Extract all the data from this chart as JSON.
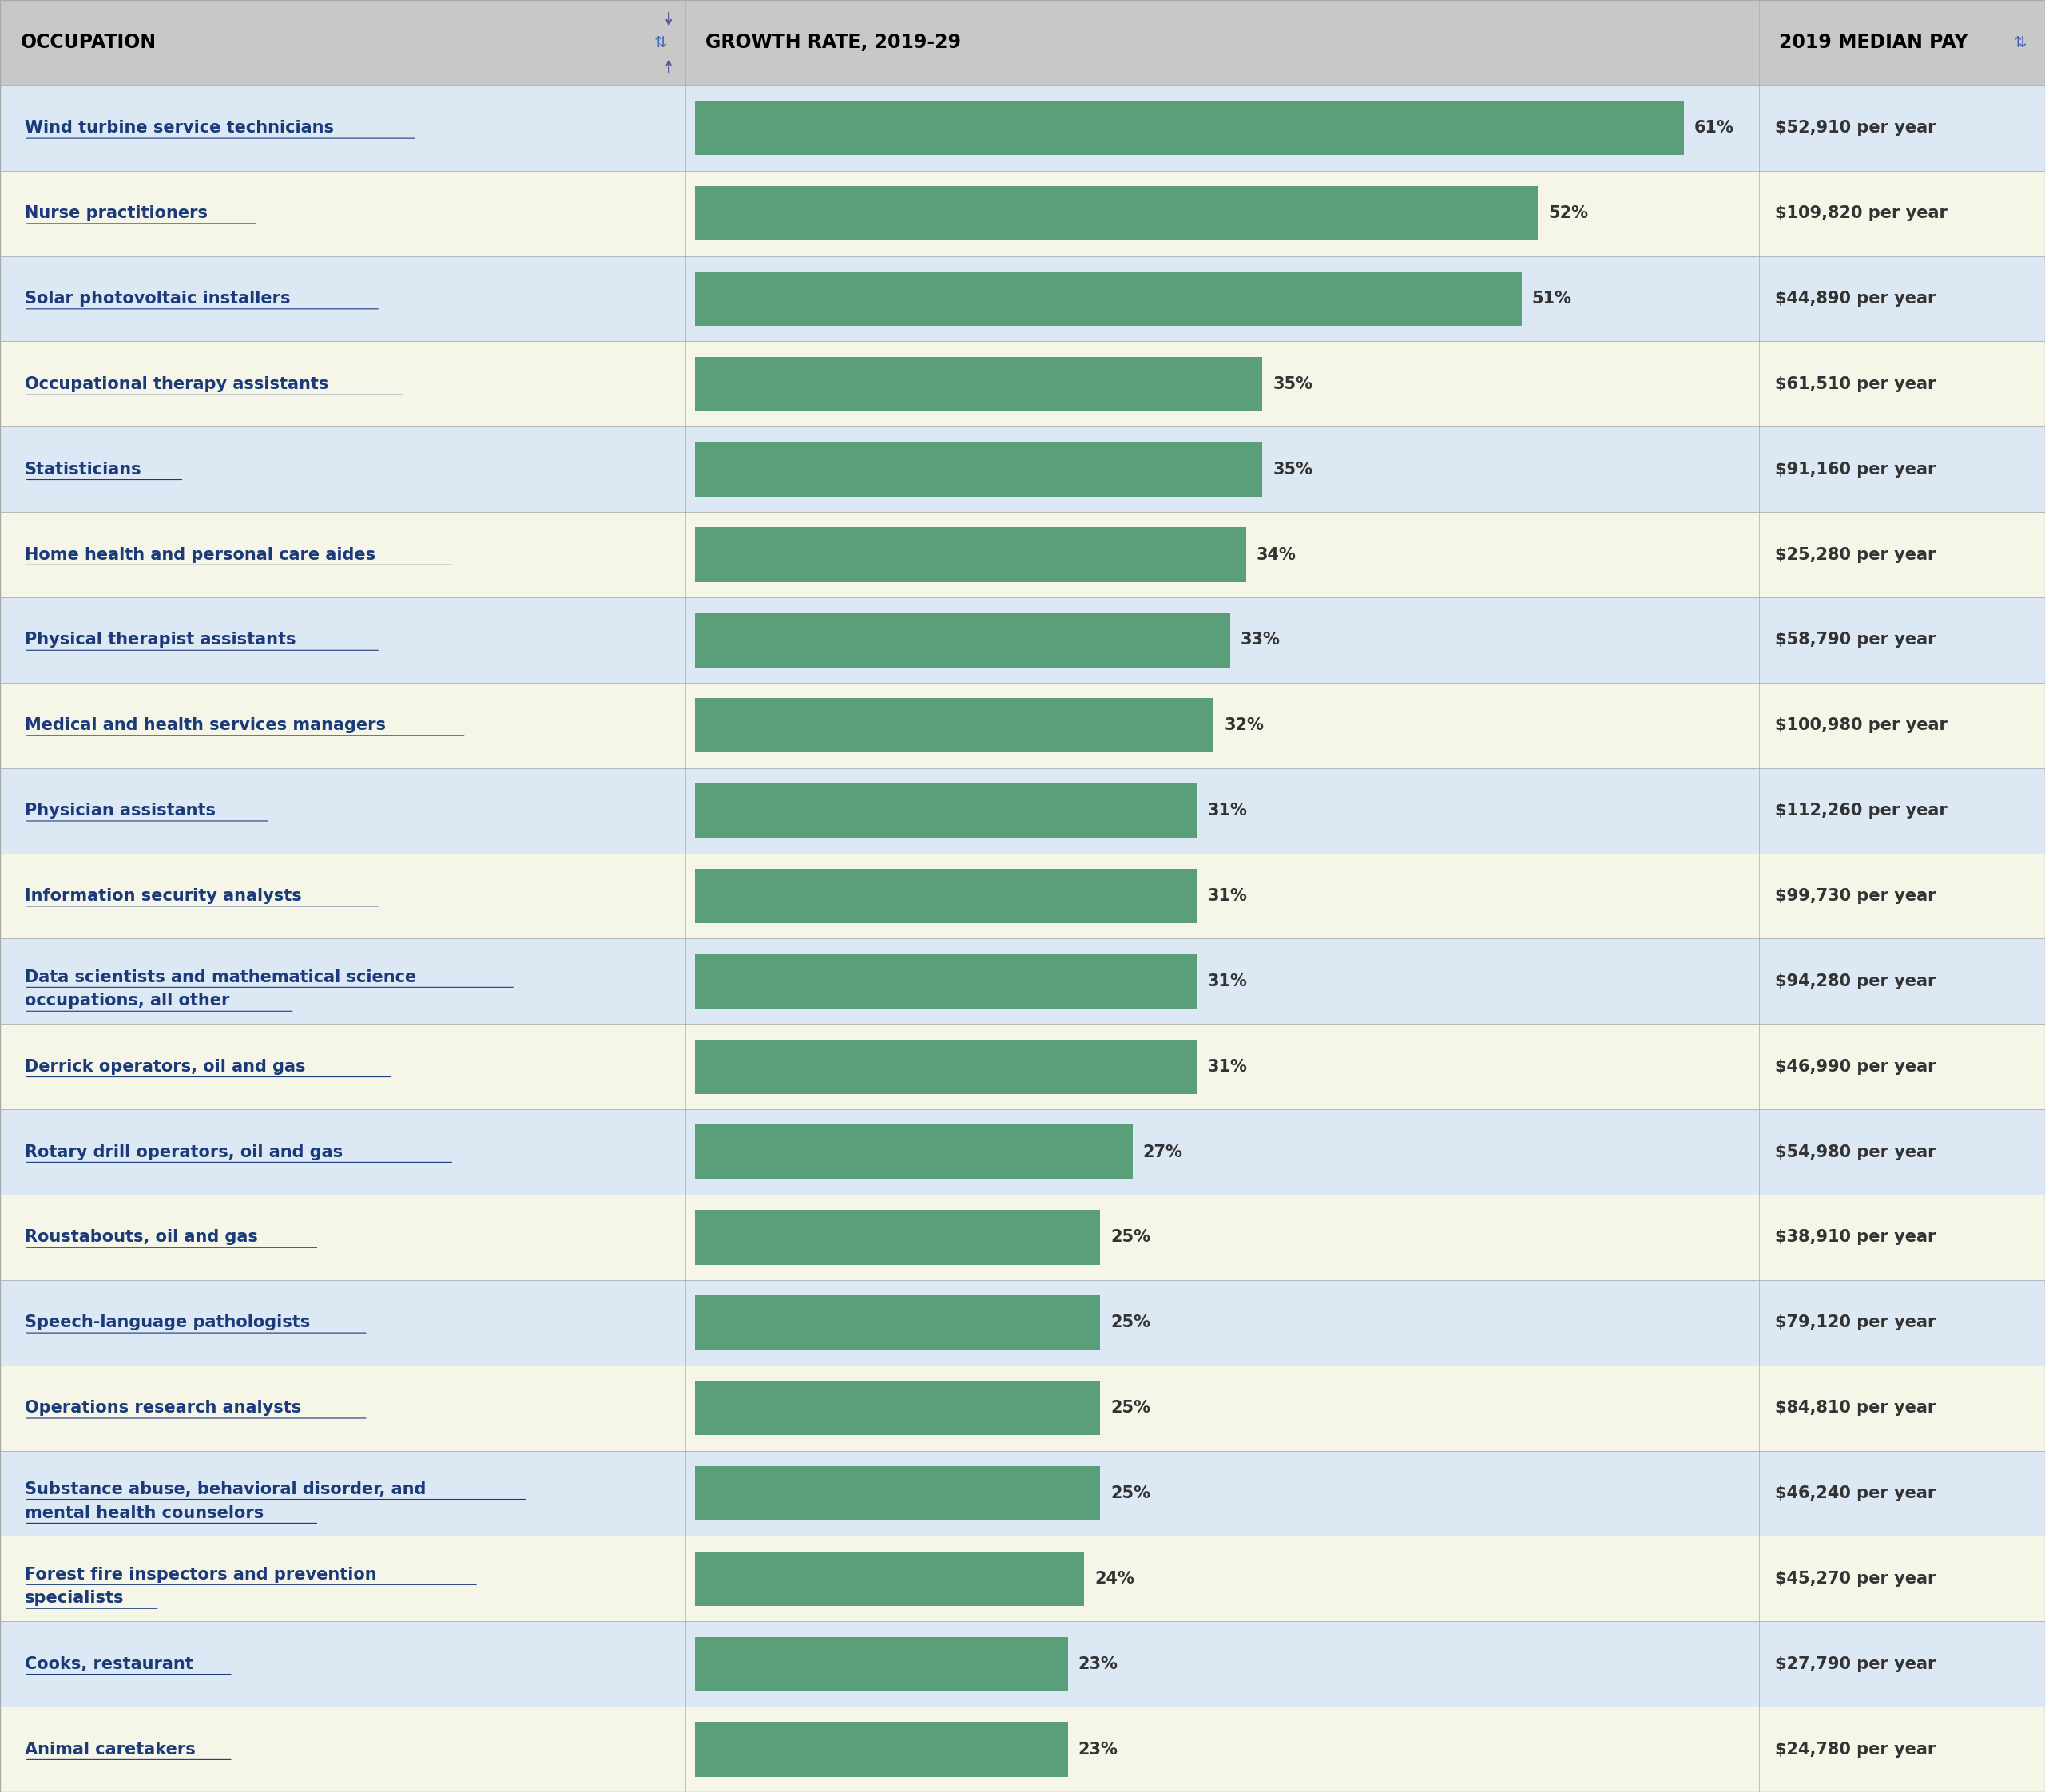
{
  "occupations": [
    "Wind turbine service technicians",
    "Nurse practitioners",
    "Solar photovoltaic installers",
    "Occupational therapy assistants",
    "Statisticians",
    "Home health and personal care aides",
    "Physical therapist assistants",
    "Medical and health services managers",
    "Physician assistants",
    "Information security analysts",
    "Data scientists and mathematical science\noccupations, all other",
    "Derrick operators, oil and gas",
    "Rotary drill operators, oil and gas",
    "Roustabouts, oil and gas",
    "Speech-language pathologists",
    "Operations research analysts",
    "Substance abuse, behavioral disorder, and\nmental health counselors",
    "Forest fire inspectors and prevention\nspecialists",
    "Cooks, restaurant",
    "Animal caretakers"
  ],
  "growth_rates": [
    61,
    52,
    51,
    35,
    35,
    34,
    33,
    32,
    31,
    31,
    31,
    31,
    27,
    25,
    25,
    25,
    25,
    24,
    23,
    23
  ],
  "median_pay": [
    "$52,910 per year",
    "$109,820 per year",
    "$44,890 per year",
    "$61,510 per year",
    "$91,160 per year",
    "$25,280 per year",
    "$58,790 per year",
    "$100,980 per year",
    "$112,260 per year",
    "$99,730 per year",
    "$94,280 per year",
    "$46,990 per year",
    "$54,980 per year",
    "$38,910 per year",
    "$79,120 per year",
    "$84,810 per year",
    "$46,240 per year",
    "$45,270 per year",
    "$27,790 per year",
    "$24,780 per year"
  ],
  "header_bg": "#c8c8c8",
  "row_colors_even": "#dde8f5",
  "row_colors_odd": "#f5f5e8",
  "bar_color": "#5a9e7a",
  "bar_bg": "#ffffff",
  "text_color": "#1a3a7a",
  "header_text_color": "#000000",
  "col1_header": "OCCUPATION",
  "col2_header": "GROWTH RATE, 2019-29",
  "col3_header": "2019 MEDIAN PAY",
  "max_bar_value": 61,
  "figure_width": 25.6,
  "figure_height": 22.44
}
